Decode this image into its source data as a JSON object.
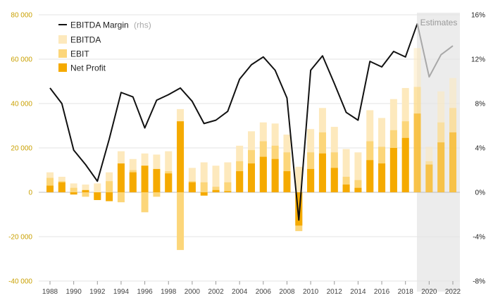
{
  "chart_data": {
    "type": "bar",
    "bar_mode": "overlay",
    "years": [
      1988,
      1989,
      1990,
      1991,
      1992,
      1993,
      1994,
      1995,
      1996,
      1997,
      1998,
      1999,
      2000,
      2001,
      2002,
      2003,
      2004,
      2005,
      2006,
      2007,
      2008,
      2009,
      2010,
      2011,
      2012,
      2013,
      2014,
      2015,
      2016,
      2017,
      2018,
      2019,
      2020,
      2021,
      2022
    ],
    "x_tick_labels": [
      "1988",
      "1990",
      "1992",
      "1994",
      "1996",
      "1998",
      "2000",
      "2002",
      "2004",
      "2006",
      "2008",
      "2010",
      "2012",
      "2014",
      "2016",
      "2018",
      "2020",
      "2022"
    ],
    "estimate_start_year": 2019,
    "estimate_label": "Estimates",
    "y_left": {
      "min": -40000,
      "max": 80000,
      "ticks": [
        -40000,
        -20000,
        0,
        20000,
        40000,
        60000,
        80000
      ],
      "tick_labels": [
        "-40 000",
        "-20 000",
        "0",
        "20 000",
        "40 000",
        "60 000",
        "80 000"
      ]
    },
    "y_right": {
      "min": -8,
      "max": 16,
      "ticks": [
        -8,
        -4,
        0,
        4,
        8,
        12,
        16
      ],
      "tick_labels": [
        "-8%",
        "-4%",
        "0%",
        "4%",
        "8%",
        "12%",
        "16%"
      ]
    },
    "series": [
      {
        "name": "EBITDA",
        "key": "ebitda",
        "color": "#fde9bd",
        "values": [
          9000,
          7000,
          4000,
          3500,
          4000,
          9000,
          18500,
          15000,
          17500,
          17000,
          18500,
          37500,
          11000,
          13500,
          12000,
          13500,
          21000,
          27500,
          31500,
          31000,
          26000,
          11500,
          28500,
          38000,
          29500,
          19500,
          18000,
          37000,
          33500,
          42000,
          47000,
          65000,
          20500,
          45500,
          51500
        ]
      },
      {
        "name": "EBIT",
        "key": "ebit",
        "color": "#fcd67a",
        "values": [
          6500,
          5000,
          2000,
          -2000,
          -3000,
          5000,
          -4500,
          10000,
          -9000,
          -2000,
          9500,
          -26000,
          5000,
          4500,
          2500,
          4500,
          14000,
          19000,
          23000,
          21000,
          18000,
          -17500,
          18000,
          27000,
          18000,
          7000,
          5500,
          23000,
          20500,
          28000,
          32000,
          47500,
          14000,
          31500,
          38000
        ]
      },
      {
        "name": "Net Profit",
        "key": "net_profit",
        "color": "#f5aa00",
        "values": [
          3000,
          4500,
          -1000,
          1000,
          -3500,
          -4000,
          13000,
          9000,
          12000,
          10500,
          8500,
          32000,
          4500,
          -1500,
          1000,
          500,
          9500,
          13000,
          16000,
          15000,
          9500,
          -15000,
          10500,
          17500,
          11000,
          3500,
          2000,
          14500,
          13000,
          20000,
          24500,
          35500,
          12500,
          22500,
          27000
        ]
      }
    ],
    "line": {
      "name": "EBITDA Margin",
      "name_suffix": "(rhs)",
      "color": "#111111",
      "estimate_color": "#a8a8a8",
      "values": [
        9.4,
        8.0,
        3.8,
        2.5,
        1.0,
        4.8,
        9.0,
        8.6,
        5.8,
        8.3,
        8.8,
        9.4,
        8.2,
        6.2,
        6.5,
        7.3,
        10.2,
        11.5,
        12.2,
        11.0,
        8.5,
        -2.5,
        11.0,
        12.3,
        9.8,
        7.2,
        6.5,
        11.8,
        11.3,
        12.7,
        12.2,
        15.2,
        10.4,
        12.4,
        13.2
      ]
    },
    "grid": true,
    "legend_position": "top-left"
  }
}
